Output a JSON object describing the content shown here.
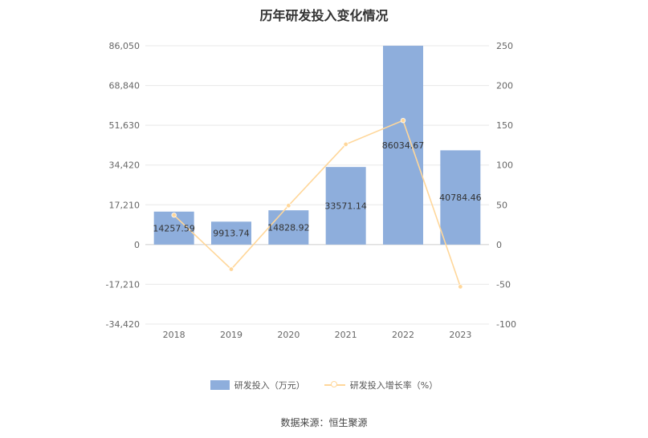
{
  "chart_data": {
    "type": "bar",
    "title": "历年研发投入变化情况",
    "categories": [
      "2018",
      "2019",
      "2020",
      "2021",
      "2022",
      "2023"
    ],
    "series": [
      {
        "name": "研发投入（万元）",
        "type": "bar",
        "axis": "left",
        "color": "#8EAEDC",
        "values": [
          14257.59,
          9913.74,
          14828.92,
          33571.14,
          86034.67,
          40784.46
        ],
        "labels": [
          "14257.59",
          "9913.74",
          "14828.92",
          "33571.14",
          "86034.67",
          "40784.46"
        ]
      },
      {
        "name": "研发投入增长率（%）",
        "type": "line",
        "axis": "right",
        "color": "#FFD79A",
        "values": [
          37,
          -31,
          49,
          126,
          156,
          -53
        ]
      }
    ],
    "y_left": {
      "ticks": [
        86050,
        68840,
        51630,
        34420,
        17210,
        0,
        -17210,
        -34420
      ],
      "tick_labels": [
        "86,050",
        "68,840",
        "51,630",
        "34,420",
        "17,210",
        "0",
        "-17,210",
        "-34,420"
      ],
      "ylim": [
        -34420,
        86050
      ]
    },
    "y_right": {
      "ticks": [
        250,
        200,
        150,
        100,
        50,
        0,
        -50,
        -100
      ],
      "tick_labels": [
        "250",
        "200",
        "150",
        "100",
        "50",
        "0",
        "-50",
        "-100"
      ],
      "ylim": [
        -100,
        250
      ]
    },
    "grid": true,
    "legend_position": "bottom"
  },
  "source": "数据来源：恒生聚源"
}
